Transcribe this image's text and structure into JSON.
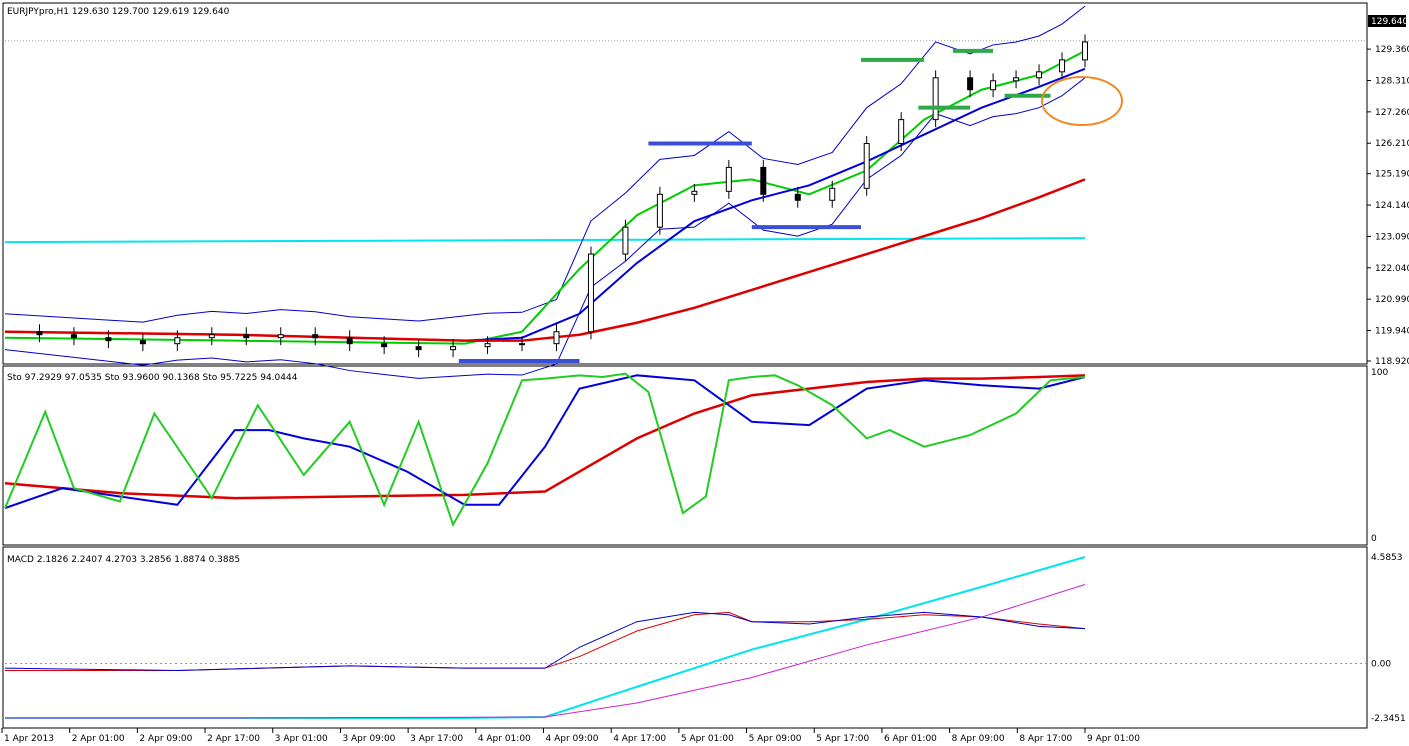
{
  "chart_data": {
    "type": "candlestick",
    "symbol_header": "EURJPYpro,H1  129.630 129.700 129.619 129.640",
    "current_price_label": "129.640",
    "price_axis": {
      "ticks": [
        "129.360",
        "128.310",
        "127.260",
        "126.210",
        "125.190",
        "124.140",
        "123.090",
        "122.040",
        "120.990",
        "119.940",
        "118.920"
      ],
      "range": [
        118.92,
        130.0
      ]
    },
    "time_axis": {
      "ticks": [
        "1 Apr 2013",
        "2 Apr 01:00",
        "2 Apr 09:00",
        "2 Apr 17:00",
        "3 Apr 01:00",
        "3 Apr 09:00",
        "3 Apr 17:00",
        "4 Apr 01:00",
        "4 Apr 09:00",
        "4 Apr 17:00",
        "5 Apr 01:00",
        "5 Apr 09:00",
        "5 Apr 17:00",
        "6 Apr 01:00",
        "8 Apr 09:00",
        "8 Apr 17:00",
        "9 Apr 01:00"
      ]
    },
    "close_series": {
      "x": [
        0,
        6,
        12,
        18,
        24,
        30,
        36,
        42,
        48,
        54,
        60,
        66,
        72,
        78,
        84,
        90,
        96,
        102,
        108,
        114,
        120,
        126,
        132,
        138,
        144,
        150,
        156,
        162,
        168,
        172,
        176,
        180,
        184,
        188
      ],
      "y": [
        119.9,
        119.8,
        119.7,
        119.6,
        119.5,
        119.7,
        119.8,
        119.7,
        119.8,
        119.7,
        119.5,
        119.4,
        119.3,
        119.4,
        119.5,
        119.5,
        119.9,
        122.5,
        123.4,
        124.5,
        124.6,
        125.4,
        124.5,
        124.3,
        124.7,
        126.2,
        127.0,
        128.4,
        128.0,
        128.3,
        128.4,
        128.6,
        129.0,
        129.6
      ]
    },
    "ema_series": [
      {
        "color": "#00cc00",
        "x": [
          0,
          40,
          80,
          90,
          100,
          110,
          120,
          130,
          140,
          150,
          160,
          170,
          180,
          188
        ],
        "y": [
          119.7,
          119.6,
          119.5,
          119.9,
          122.0,
          123.8,
          124.8,
          125.0,
          124.5,
          125.3,
          127.0,
          128.0,
          128.5,
          129.3
        ]
      },
      {
        "color": "#0000dd",
        "x": [
          0,
          40,
          80,
          90,
          100,
          110,
          120,
          130,
          140,
          150,
          160,
          170,
          180,
          188
        ],
        "y": [
          119.9,
          119.8,
          119.6,
          119.7,
          120.5,
          122.2,
          123.6,
          124.3,
          124.8,
          125.6,
          126.5,
          127.4,
          128.1,
          128.7
        ]
      },
      {
        "color": "#dd0000",
        "x": [
          0,
          40,
          80,
          90,
          100,
          110,
          120,
          130,
          140,
          150,
          160,
          170,
          180,
          188
        ],
        "y": [
          119.9,
          119.8,
          119.6,
          119.6,
          119.8,
          120.2,
          120.7,
          121.3,
          121.9,
          122.5,
          123.1,
          123.7,
          124.4,
          125.0
        ]
      }
    ],
    "horizontal_line": {
      "value": 122.9,
      "color": "#00e5ee"
    },
    "sr_marks": [
      {
        "color": "#3b4fd6",
        "x0": 79,
        "x1": 100,
        "value": 118.92
      },
      {
        "color": "#3b4fd6",
        "x0": 112,
        "x1": 130,
        "value": 126.2
      },
      {
        "color": "#3b4fd6",
        "x0": 130,
        "x1": 149,
        "value": 123.4
      },
      {
        "color": "#2fa84a",
        "x0": 149,
        "x1": 160,
        "value": 129.0
      },
      {
        "color": "#2fa84a",
        "x0": 159,
        "x1": 168,
        "value": 127.4
      },
      {
        "color": "#2fa84a",
        "x0": 165,
        "x1": 172,
        "value": 129.3
      },
      {
        "color": "#2fa84a",
        "x0": 174,
        "x1": 182,
        "value": 127.8
      }
    ],
    "stochastic": {
      "header": "Sto 97.2929 97.0535  Sto 93.9600 90.1368  Sto 95.7225 94.0444",
      "ticks": [
        "100",
        "0"
      ],
      "fast": {
        "x": [
          0,
          7,
          12,
          20,
          26,
          36,
          44,
          52,
          60,
          66,
          72,
          78,
          84,
          90,
          94,
          100,
          104,
          108,
          112,
          118,
          122,
          126,
          130,
          134,
          138,
          144,
          150,
          154,
          160,
          168,
          176,
          182,
          188
        ],
        "y": [
          18,
          76,
          30,
          22,
          75,
          24,
          80,
          38,
          70,
          20,
          70,
          8,
          45,
          95,
          96,
          98,
          97,
          99,
          88,
          15,
          25,
          95,
          97,
          98,
          92,
          80,
          60,
          65,
          55,
          62,
          75,
          95,
          97
        ]
      },
      "mid": {
        "x": [
          0,
          10,
          20,
          30,
          40,
          46,
          52,
          60,
          70,
          80,
          86,
          94,
          100,
          110,
          120,
          130,
          140,
          150,
          160,
          170,
          180,
          188
        ],
        "y": [
          18,
          30,
          25,
          20,
          65,
          65,
          60,
          55,
          40,
          20,
          20,
          55,
          90,
          98,
          95,
          70,
          68,
          90,
          95,
          92,
          90,
          97
        ]
      },
      "slow": {
        "x": [
          0,
          20,
          40,
          60,
          80,
          94,
          100,
          110,
          120,
          130,
          140,
          150,
          160,
          170,
          180,
          188
        ],
        "y": [
          33,
          27,
          24,
          25,
          26,
          28,
          40,
          60,
          75,
          86,
          90,
          94,
          96,
          96,
          97,
          98
        ]
      }
    },
    "macd": {
      "header": "MACD 2.1826 2.2407 4.2703 3.2856 1.8874 0.3885",
      "ticks": [
        "4.5853",
        "0.00",
        "-2.3451"
      ],
      "macd_line": {
        "x": [
          0,
          30,
          60,
          80,
          94,
          100,
          110,
          120,
          126,
          130,
          140,
          150,
          160,
          170,
          180,
          188
        ],
        "y": [
          -0.2,
          -0.3,
          -0.1,
          -0.2,
          -0.2,
          0.7,
          1.8,
          2.2,
          2.1,
          1.8,
          1.7,
          2.0,
          2.2,
          2.0,
          1.6,
          1.5
        ]
      },
      "signal_line": {
        "x": [
          0,
          30,
          60,
          80,
          94,
          100,
          110,
          120,
          126,
          130,
          140,
          150,
          160,
          170,
          180,
          188
        ],
        "y": [
          -0.3,
          -0.3,
          -0.1,
          -0.2,
          -0.2,
          0.3,
          1.4,
          2.1,
          2.2,
          1.8,
          1.8,
          1.9,
          2.1,
          2.0,
          1.7,
          1.5
        ]
      },
      "histogram_line": {
        "x": [
          0,
          40,
          80,
          94,
          110,
          130,
          150,
          170,
          188
        ],
        "y": [
          -2.3451,
          -2.3451,
          -2.3451,
          -2.3,
          -1.0,
          0.6,
          1.9,
          3.3,
          4.5853
        ]
      },
      "ma_line": {
        "x": [
          0,
          40,
          94,
          110,
          130,
          150,
          170,
          188
        ],
        "y": [
          -2.3451,
          -2.3451,
          -2.3,
          -1.7,
          -0.6,
          0.8,
          2.0,
          3.4
        ]
      }
    }
  }
}
